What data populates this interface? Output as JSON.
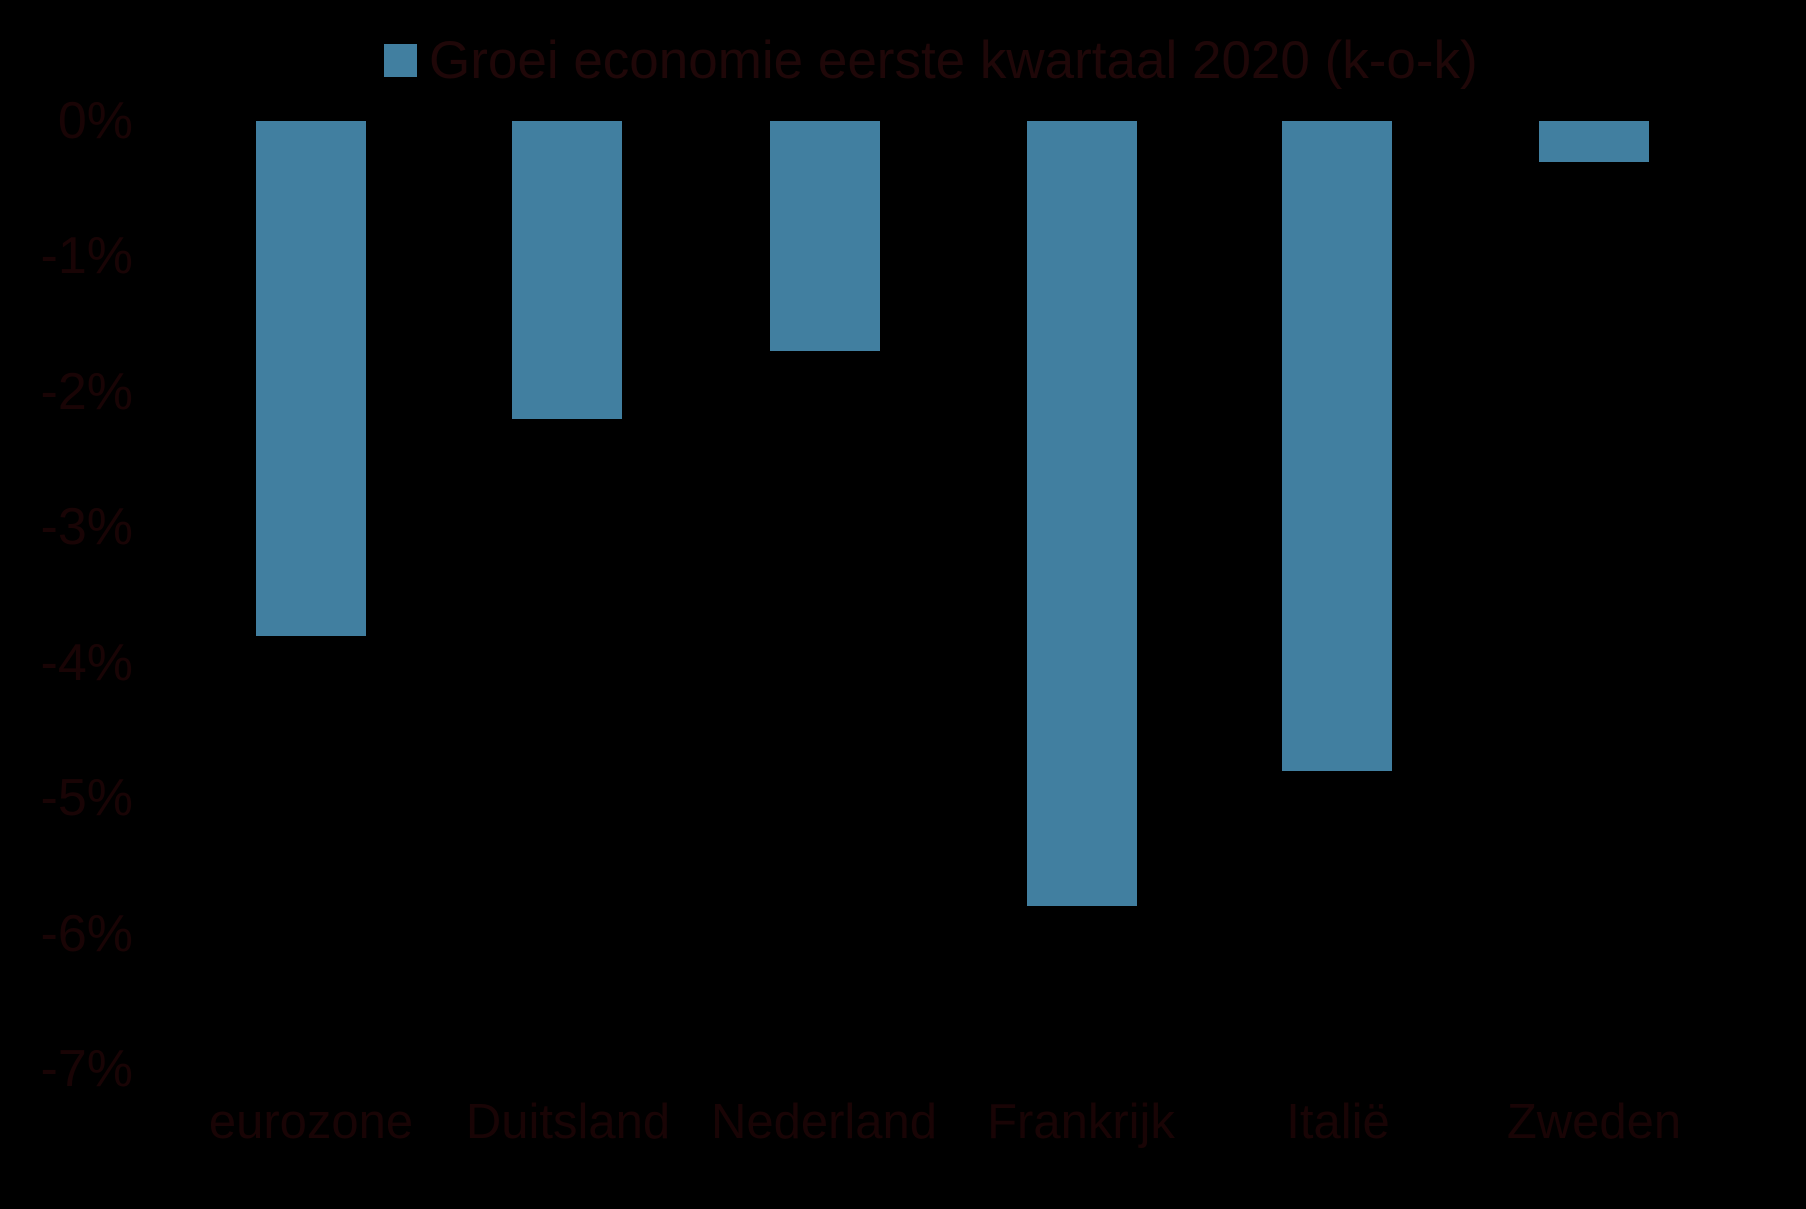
{
  "chart_data": {
    "type": "bar",
    "title": "Groei economie eerste kwartaal 2020 (k-o-k)",
    "legend": {
      "position": "top-center",
      "entries": [
        "Groei economie eerste kwartaal 2020 (k-o-k)"
      ]
    },
    "categories": [
      "eurozone",
      "Duitsland",
      "Nederland",
      "Frankrijk",
      "Italië",
      "Zweden"
    ],
    "values": [
      -3.8,
      -2.2,
      -1.7,
      -5.8,
      -4.8,
      -0.3
    ],
    "unit": "%",
    "xlabel": "",
    "ylabel": "",
    "ylim": [
      -7,
      0
    ],
    "ytick_labels": [
      "0%",
      "-1%",
      "-2%",
      "-3%",
      "-4%",
      "-5%",
      "-6%",
      "-7%"
    ],
    "ytick_values": [
      0,
      -1,
      -2,
      -3,
      -4,
      -5,
      -6,
      -7
    ],
    "grid": false,
    "colors": {
      "bar": "#417FA0",
      "background": "#000000",
      "tick_text": "#190405",
      "category_text": "#190405",
      "legend_text": "#1F0708"
    }
  }
}
